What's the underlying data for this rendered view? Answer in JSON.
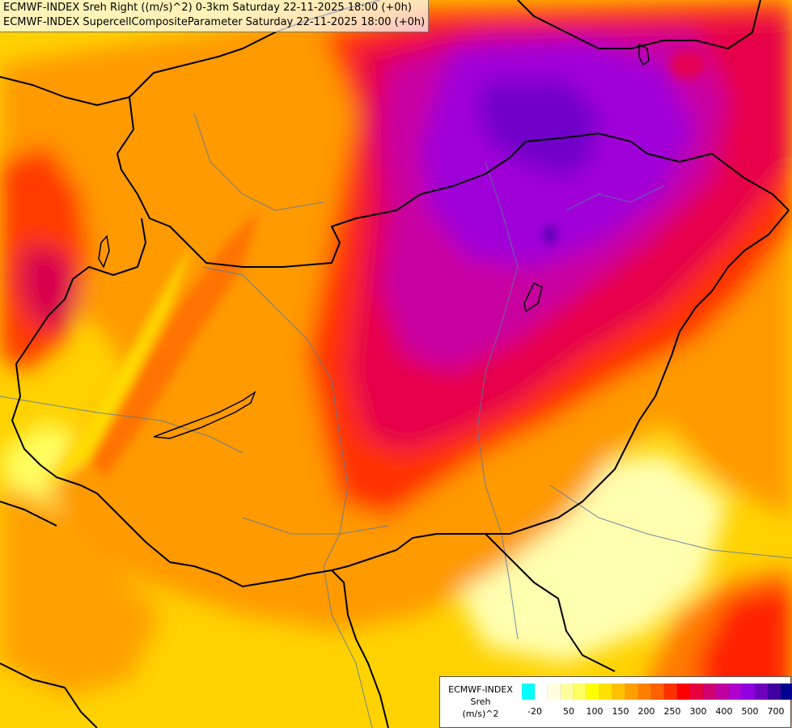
{
  "titles": {
    "line1": "ECMWF-INDEX Sreh Right ((m/s)^2) 0-3km Saturday 22-11-2025 18:00 (+0h)",
    "line2": "ECMWF-INDEX SupercellCompositeParameter Saturday 22-11-2025 18:00 (+0h)"
  },
  "legend": {
    "model": "ECMWF-INDEX",
    "variable": "Sreh",
    "unit": "(m/s)^2",
    "colors": [
      "#00ffff",
      "#ffffff",
      "#ffffe0",
      "#ffffa0",
      "#ffff60",
      "#ffff00",
      "#ffe000",
      "#ffc000",
      "#ffa000",
      "#ff8000",
      "#ff6000",
      "#ff3000",
      "#ff0000",
      "#e80040",
      "#d00070",
      "#c000a0",
      "#b000d0",
      "#9000e0",
      "#7000c0",
      "#4000a0",
      "#000090"
    ],
    "ticks": [
      "-20",
      "50",
      "100",
      "150",
      "200",
      "250",
      "300",
      "400",
      "500",
      "700"
    ]
  },
  "map_colors": {
    "base": "#ffd200",
    "orange": "#ff9a00",
    "red": "#ff3a00",
    "crimson": "#e6004a",
    "magenta": "#c800a0",
    "purple": "#a000d8",
    "violet": "#7000c8",
    "pale": "#ffffc0",
    "border": "#000000",
    "river": "#5a78a0"
  }
}
